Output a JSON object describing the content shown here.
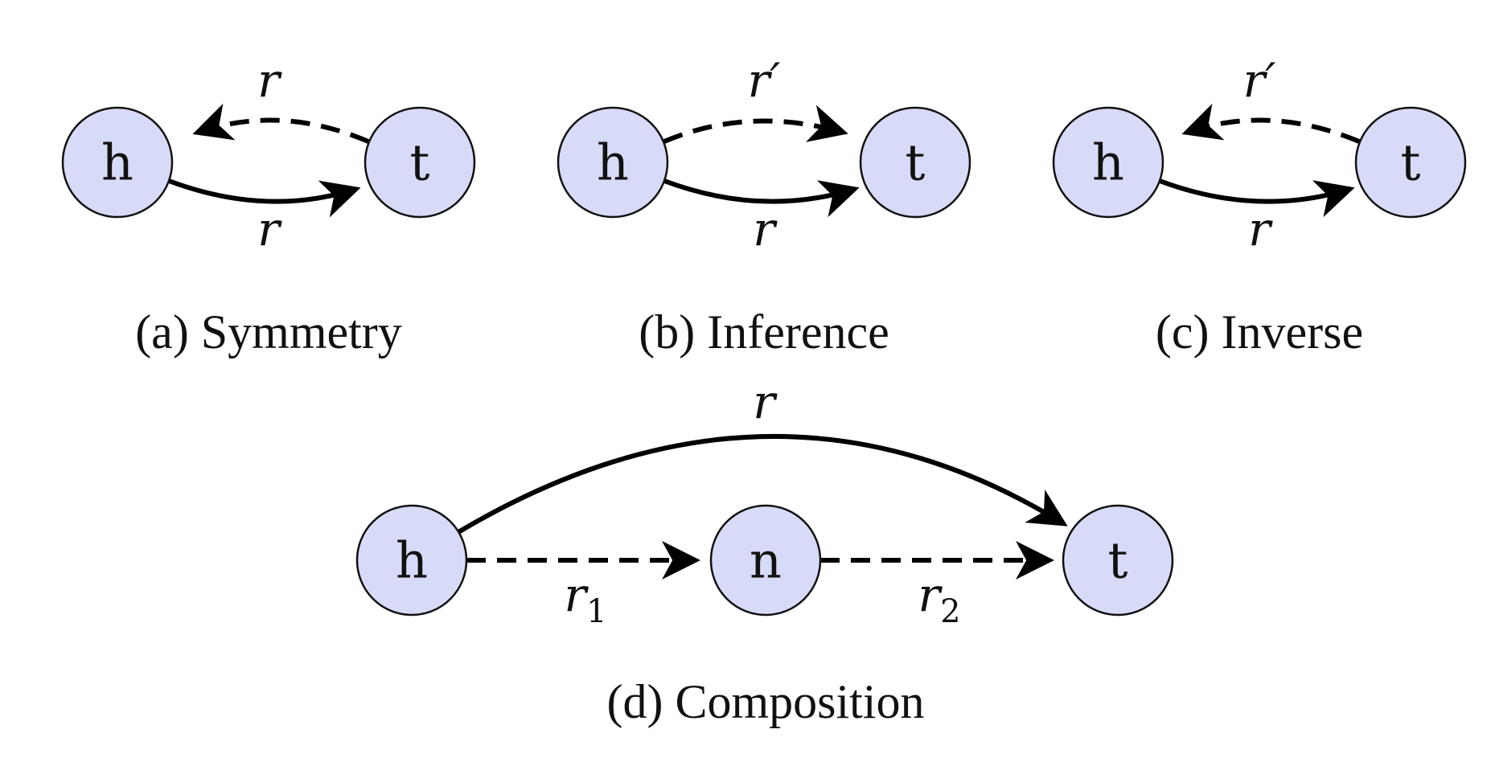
{
  "panels": {
    "a": {
      "caption": "(a) Symmetry",
      "nodes": {
        "h": "h",
        "t": "t"
      },
      "edges": {
        "top": "r",
        "bottom": "r"
      }
    },
    "b": {
      "caption": "(b) Inference",
      "nodes": {
        "h": "h",
        "t": "t"
      },
      "edges": {
        "top": "r′",
        "bottom": "r"
      }
    },
    "c": {
      "caption": "(c) Inverse",
      "nodes": {
        "h": "h",
        "t": "t"
      },
      "edges": {
        "top": "r′",
        "bottom": "r"
      }
    },
    "d": {
      "caption": "(d) Composition",
      "nodes": {
        "h": "h",
        "n": "n",
        "t": "t"
      },
      "edges": {
        "top": "r",
        "r1_base": "r",
        "r1_sub": "1",
        "r2_base": "r",
        "r2_sub": "2"
      }
    }
  }
}
